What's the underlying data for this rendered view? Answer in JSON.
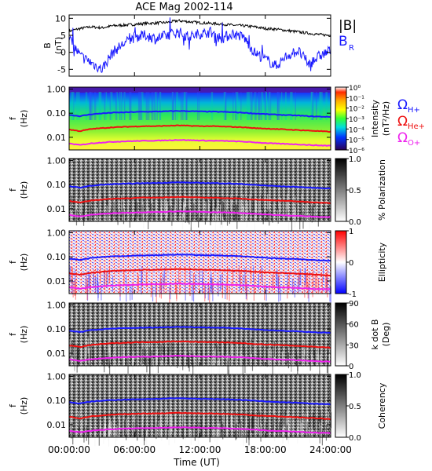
{
  "chart_data": [
    {
      "type": "line",
      "id": "bfield",
      "title": "ACE Mag 2002-114",
      "ylabel": "B",
      "yunit": "(nT)",
      "ylim": [
        -7,
        11
      ],
      "yticks": [
        "-5",
        "0",
        "5",
        "10"
      ],
      "legend": {
        "bmag": "|B|",
        "br": "B",
        "br_sub": "R"
      },
      "series": [
        {
          "name": "|B|",
          "color": "#000000",
          "x_hours": [
            0,
            1,
            2,
            3,
            4,
            5,
            6,
            7,
            8,
            9,
            10,
            11,
            12,
            13,
            14,
            15,
            16,
            17,
            18,
            19,
            20,
            21,
            22,
            23,
            24
          ],
          "values": [
            6.2,
            7.0,
            7.5,
            7.2,
            7.8,
            8.0,
            8.2,
            8.5,
            8.6,
            8.8,
            9.3,
            9.0,
            8.7,
            8.5,
            8.3,
            8.0,
            7.8,
            7.5,
            7.0,
            6.8,
            6.4,
            6.0,
            5.6,
            5.2,
            5.0
          ]
        },
        {
          "name": "B_R",
          "color": "#1a1aff",
          "x_hours": [
            0,
            1,
            2,
            3,
            4,
            5,
            6,
            7,
            8,
            9,
            10,
            11,
            12,
            13,
            14,
            15,
            16,
            17,
            18,
            19,
            20,
            21,
            22,
            23,
            24
          ],
          "values": [
            4.0,
            -1.0,
            -3.0,
            -5.0,
            0.0,
            2.5,
            4.5,
            5.0,
            4.0,
            5.0,
            6.0,
            4.5,
            5.5,
            6.0,
            4.0,
            5.5,
            4.5,
            0.0,
            -2.0,
            -4.0,
            -1.0,
            0.5,
            -3.5,
            -1.0,
            0.5
          ]
        }
      ]
    },
    {
      "type": "heatmap",
      "id": "intensity",
      "ylabel": "f",
      "yunit": "(Hz)",
      "colorbar": {
        "label": "Intensity",
        "unit": "(nT²/Hz)",
        "ticks": [
          "10⁰",
          "10⁻¹",
          "10⁻²",
          "10⁻³",
          "10⁻⁴",
          "10⁻⁵",
          "10⁻⁶"
        ]
      },
      "legend": {
        "h": "Ω",
        "h_sub": "H+",
        "he": "Ω",
        "he_sub": "He+",
        "o": "Ω",
        "o_sub": "O+"
      }
    },
    {
      "type": "heatmap",
      "id": "polarization",
      "ylabel": "f",
      "yunit": "(Hz)",
      "colorbar": {
        "label": "% Polarization",
        "ticks": [
          "1.0",
          "0.5",
          "0.0"
        ]
      }
    },
    {
      "type": "heatmap",
      "id": "ellipticity",
      "ylabel": "f",
      "yunit": "(Hz)",
      "colorbar": {
        "label": "Ellipticity",
        "ticks": [
          "1",
          "0",
          "-1"
        ]
      }
    },
    {
      "type": "heatmap",
      "id": "kdotb",
      "ylabel": "f",
      "yunit": "(Hz)",
      "colorbar": {
        "label": "k dot B",
        "unit": "(Deg)",
        "ticks": [
          "90",
          "60",
          "30",
          "0"
        ]
      }
    },
    {
      "type": "heatmap",
      "id": "coherency",
      "ylabel": "f",
      "yunit": "(Hz)",
      "colorbar": {
        "label": "Coherency",
        "ticks": [
          "1.0",
          "0.5",
          "0.0"
        ]
      }
    }
  ],
  "freq_axis": {
    "ticks": [
      "1.00",
      "0.10",
      "0.01"
    ],
    "ylim_hz": [
      0.003,
      1.2
    ]
  },
  "time_axis": {
    "xlabel": "Time (UT)",
    "ticks": [
      "00:00:00",
      "06:00:00",
      "12:00:00",
      "18:00:00",
      "24:00:00"
    ],
    "xlim_hours": [
      0,
      24
    ]
  },
  "gyrofrequencies": {
    "x_hours": [
      0,
      1,
      2,
      3,
      4,
      5,
      6,
      7,
      8,
      9,
      10,
      11,
      12,
      13,
      14,
      15,
      16,
      17,
      18,
      19,
      20,
      21,
      22,
      23,
      24
    ],
    "h_plus_hz": [
      0.085,
      0.075,
      0.09,
      0.098,
      0.105,
      0.108,
      0.112,
      0.115,
      0.117,
      0.12,
      0.124,
      0.121,
      0.118,
      0.116,
      0.114,
      0.11,
      0.105,
      0.097,
      0.092,
      0.087,
      0.083,
      0.08,
      0.075,
      0.072,
      0.07
    ],
    "he_plus_hz": [
      0.021,
      0.018,
      0.022,
      0.024,
      0.026,
      0.027,
      0.028,
      0.029,
      0.029,
      0.03,
      0.031,
      0.03,
      0.029,
      0.029,
      0.028,
      0.027,
      0.026,
      0.024,
      0.023,
      0.022,
      0.021,
      0.02,
      0.019,
      0.018,
      0.017
    ],
    "o_plus_hz": [
      0.0055,
      0.0048,
      0.0056,
      0.0061,
      0.0065,
      0.0068,
      0.007,
      0.0072,
      0.0073,
      0.0075,
      0.0078,
      0.0076,
      0.0074,
      0.0072,
      0.0071,
      0.0069,
      0.0066,
      0.0062,
      0.0058,
      0.0055,
      0.0053,
      0.0051,
      0.0048,
      0.0046,
      0.0045
    ]
  },
  "colors": {
    "h_plus": "#1a1aff",
    "he_plus": "#ee1111",
    "o_plus": "#ee22ee",
    "br": "#1a1aff"
  }
}
